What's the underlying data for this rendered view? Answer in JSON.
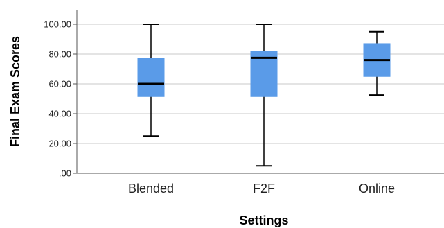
{
  "chart_data": {
    "type": "boxplot",
    "xlabel": "Settings",
    "ylabel": "Final Exam Scores",
    "ylim": [
      0,
      100
    ],
    "yticks": [
      0,
      20,
      40,
      60,
      80,
      100
    ],
    "ytick_labels": [
      ".00",
      "20.00",
      "40.00",
      "60.00",
      "80.00",
      "100.00"
    ],
    "grid": "horizontal",
    "categories": [
      "Blended",
      "F2F",
      "Online"
    ],
    "boxes": [
      {
        "category": "Blended",
        "min": 25,
        "q1": 51.5,
        "median": 60,
        "q3": 77,
        "max": 100
      },
      {
        "category": "F2F",
        "min": 5,
        "q1": 51.5,
        "median": 77.5,
        "q3": 82,
        "max": 100
      },
      {
        "category": "Online",
        "min": 52.5,
        "q1": 65,
        "median": 76,
        "q3": 87,
        "max": 95
      }
    ],
    "colors": {
      "box_fill": "#5A9BE8",
      "box_stroke": "#5A9BE8",
      "median": "#000000",
      "whisker": "#000000",
      "grid": "#C8C8C8",
      "axis": "#555555"
    }
  }
}
